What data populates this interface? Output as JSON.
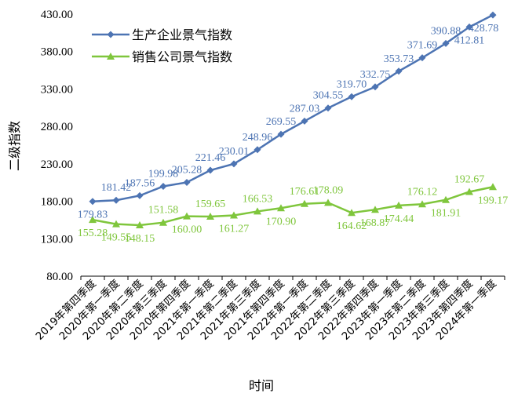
{
  "chart_data": {
    "type": "line",
    "title": "",
    "xlabel": "时间",
    "ylabel": "二级指数",
    "ylim": [
      80,
      430
    ],
    "yticks": [
      "80.00",
      "130.00",
      "180.00",
      "230.00",
      "280.00",
      "330.00",
      "380.00",
      "430.00"
    ],
    "categories": [
      "2019年第四季度",
      "2020年第一季度",
      "2020年第二季度",
      "2020年第三季度",
      "2020年第四季度",
      "2021年第一季度",
      "2021年第二季度",
      "2021年第三季度",
      "2021年第四季度",
      "2022年第一季度",
      "2022年第二季度",
      "2022年第三季度",
      "2022年第四季度",
      "2023年第一季度",
      "2023年第二季度",
      "2023年第三季度",
      "2023年第四季度",
      "2024年第一季度"
    ],
    "series": [
      {
        "name": "生产企业景气指数",
        "color": "#4d74b3",
        "marker": "diamond",
        "values": [
          179.83,
          181.42,
          187.56,
          199.98,
          205.28,
          221.46,
          230.01,
          248.96,
          269.55,
          287.03,
          304.55,
          319.7,
          332.75,
          353.73,
          371.69,
          390.88,
          412.81,
          428.78
        ],
        "labels": [
          "179.83",
          "181.42",
          "187.56",
          "199.98",
          "205.28",
          "221.46",
          "230.01",
          "248.96",
          "269.55",
          "287.03",
          "304.55",
          "319.70",
          "332.75",
          "353.73",
          "371.69",
          "390.88",
          "412.81",
          "428.78"
        ]
      },
      {
        "name": "销售公司景气指数",
        "color": "#7fc63c",
        "marker": "triangle",
        "values": [
          155.28,
          149.55,
          148.15,
          151.58,
          160.0,
          159.65,
          161.27,
          166.53,
          170.9,
          176.61,
          178.09,
          164.62,
          168.87,
          174.44,
          176.12,
          181.91,
          192.67,
          199.17
        ],
        "labels": [
          "155.28",
          "149.55",
          "148.15",
          "151.58",
          "160.00",
          "159.65",
          "161.27",
          "166.53",
          "170.90",
          "176.61",
          "178.09",
          "164.62",
          "168.87",
          "174.44",
          "176.12",
          "181.91",
          "192.67",
          "199.17"
        ]
      }
    ],
    "legend_position": "top-left"
  }
}
